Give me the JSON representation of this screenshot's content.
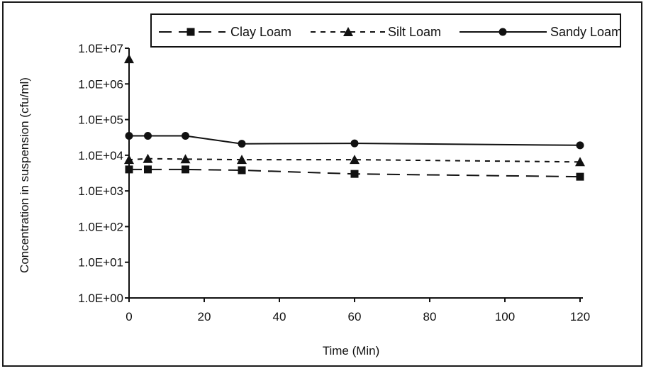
{
  "chart_data": {
    "type": "line",
    "xlabel": "Time (Min)",
    "ylabel": "Concentration in suspension (cfu/ml)",
    "x_ticks": [
      0,
      20,
      40,
      60,
      80,
      100,
      120
    ],
    "y_ticks": [
      1,
      10,
      100,
      1000,
      10000,
      100000,
      1000000,
      10000000
    ],
    "y_tick_labels": [
      "1.0E+00",
      "1.0E+01",
      "1.0E+02",
      "1.0E+03",
      "1.0E+04",
      "1.0E+05",
      "1.0E+06",
      "1.0E+07"
    ],
    "xlim": [
      0,
      120
    ],
    "ylim": [
      1,
      10000000
    ],
    "y_scale": "log",
    "grid": false,
    "legend_position": "top",
    "series": [
      {
        "name": "Clay Loam",
        "marker": "square",
        "line_style": "long-dash",
        "x": [
          0,
          5,
          15,
          30,
          60,
          120
        ],
        "y": [
          4000,
          4000,
          4000,
          3800,
          3000,
          2500
        ]
      },
      {
        "name": "Silt Loam",
        "marker": "triangle",
        "line_style": "short-dash",
        "x": [
          0,
          0,
          5,
          15,
          30,
          60,
          120
        ],
        "y": [
          5000000,
          7500,
          8000,
          7800,
          7500,
          7500,
          6500
        ]
      },
      {
        "name": "Sandy Loam",
        "marker": "circle",
        "line_style": "solid",
        "x": [
          0,
          5,
          15,
          30,
          60,
          120
        ],
        "y": [
          35000,
          35000,
          35000,
          21000,
          21500,
          19000
        ]
      }
    ]
  }
}
